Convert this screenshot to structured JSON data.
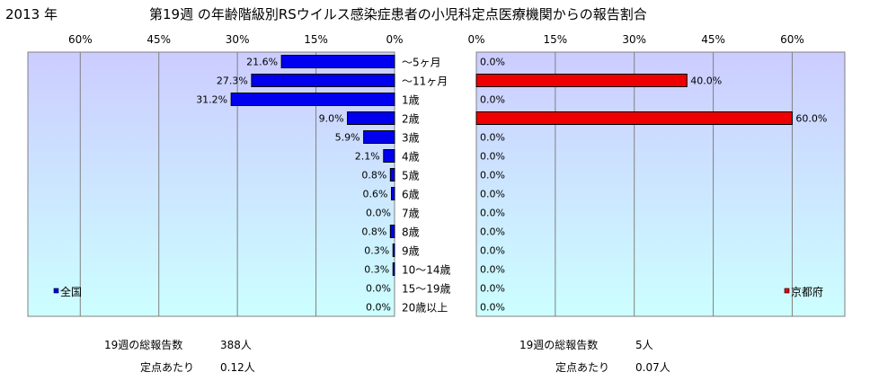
{
  "header": {
    "year_label": "2013 年",
    "title": "第19週 の年齢階級別RSウイルス感染症患者の小児科定点医療機関からの報告割合"
  },
  "chart_data": [
    {
      "type": "bar",
      "orientation": "horizontal",
      "direction": "right-to-left",
      "legend": "全国",
      "legend_position": "bottom-left",
      "color": "#0000ee",
      "xlim": [
        0,
        70
      ],
      "ticks": [
        0,
        15,
        30,
        45,
        60
      ],
      "tick_labels": [
        "0%",
        "15%",
        "30%",
        "45%",
        "60%"
      ],
      "grid": true,
      "categories": [
        "～5ヶ月",
        "～11ヶ月",
        "1歳",
        "2歳",
        "3歳",
        "4歳",
        "5歳",
        "6歳",
        "7歳",
        "8歳",
        "9歳",
        "10～14歳",
        "15～19歳",
        "20歳以上"
      ],
      "values": [
        21.6,
        27.3,
        31.2,
        9.0,
        5.9,
        2.1,
        0.8,
        0.6,
        0.0,
        0.8,
        0.3,
        0.3,
        0.0,
        0.0
      ],
      "value_labels": [
        "21.6%",
        "27.3%",
        "31.2%",
        "9.0%",
        "5.9%",
        "2.1%",
        "0.8%",
        "0.6%",
        "0.0%",
        "0.8%",
        "0.3%",
        "0.3%",
        "0.0%",
        "0.0%"
      ]
    },
    {
      "type": "bar",
      "orientation": "horizontal",
      "direction": "left-to-right",
      "legend": "京都府",
      "legend_position": "bottom-right",
      "color": "#ee0000",
      "xlim": [
        0,
        70
      ],
      "ticks": [
        0,
        15,
        30,
        45,
        60
      ],
      "tick_labels": [
        "0%",
        "15%",
        "30%",
        "45%",
        "60%"
      ],
      "grid": true,
      "categories": [
        "～5ヶ月",
        "～11ヶ月",
        "1歳",
        "2歳",
        "3歳",
        "4歳",
        "5歳",
        "6歳",
        "7歳",
        "8歳",
        "9歳",
        "10～14歳",
        "15～19歳",
        "20歳以上"
      ],
      "values": [
        0.0,
        40.0,
        0.0,
        60.0,
        0.0,
        0.0,
        0.0,
        0.0,
        0.0,
        0.0,
        0.0,
        0.0,
        0.0,
        0.0
      ],
      "value_labels": [
        "0.0%",
        "40.0%",
        "0.0%",
        "60.0%",
        "0.0%",
        "0.0%",
        "0.0%",
        "0.0%",
        "0.0%",
        "0.0%",
        "0.0%",
        "0.0%",
        "0.0%",
        "0.0%"
      ]
    }
  ],
  "stats": {
    "national": {
      "total_label": "19週の総報告数",
      "total_value": "388人",
      "per_label": "定点あたり",
      "per_value": "0.12人"
    },
    "kyoto": {
      "total_label": "19週の総報告数",
      "total_value": "5人",
      "per_label": "定点あたり",
      "per_value": "0.07人"
    }
  },
  "colors": {
    "plot_top": "#ccccff",
    "plot_bottom": "#ccffff",
    "frame": "#808080",
    "grid": "#808080"
  }
}
